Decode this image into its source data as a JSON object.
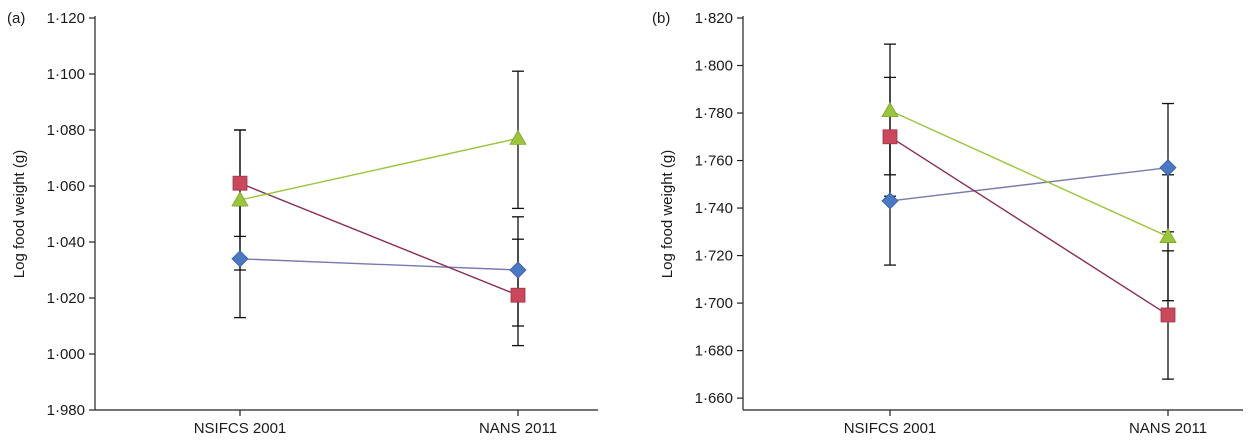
{
  "chart_data": [
    {
      "panel_label": "(a)",
      "type": "line",
      "ylabel": "Log food weight (g)",
      "categories": [
        "NSIFCS 2001",
        "NANS 2011"
      ],
      "ylim": [
        0.98,
        1.12
      ],
      "yticks": [
        0.98,
        1.0,
        1.02,
        1.04,
        1.06,
        1.08,
        1.1,
        1.12
      ],
      "ytick_labels": [
        "1·980",
        "1·000",
        "1·020",
        "1·040",
        "1·060",
        "1·080",
        "1·100",
        "1·120"
      ],
      "series": [
        {
          "marker": "diamond",
          "color": "#4a78c2",
          "line_color": "#7a7ab0",
          "values": [
            1.034,
            1.03
          ],
          "err_low": [
            1.013,
            1.003
          ],
          "err_high": [
            1.053,
            1.049
          ]
        },
        {
          "marker": "square",
          "color": "#c9485b",
          "line_color": "#8c2a57",
          "values": [
            1.061,
            1.021
          ],
          "err_low": [
            1.042,
            1.01
          ],
          "err_high": [
            1.08,
            1.041
          ]
        },
        {
          "marker": "triangle",
          "color": "#9bc53d",
          "line_color": "#9bc53d",
          "values": [
            1.055,
            1.077
          ],
          "err_low": [
            1.03,
            1.052
          ],
          "err_high": [
            1.08,
            1.101
          ]
        }
      ]
    },
    {
      "panel_label": "(b)",
      "type": "line",
      "ylabel": "Log food weight (g)",
      "categories": [
        "NSIFCS 2001",
        "NANS 2011"
      ],
      "ylim": [
        1.655,
        1.82
      ],
      "yticks": [
        1.66,
        1.68,
        1.7,
        1.72,
        1.74,
        1.76,
        1.78,
        1.8,
        1.82
      ],
      "ytick_labels": [
        "1·660",
        "1·680",
        "1·700",
        "1·720",
        "1·740",
        "1·760",
        "1·780",
        "1·800",
        "1·820"
      ],
      "series": [
        {
          "marker": "diamond",
          "color": "#4a78c2",
          "line_color": "#7a7ab0",
          "values": [
            1.743,
            1.757
          ],
          "err_low": [
            1.716,
            1.73
          ],
          "err_high": [
            1.77,
            1.784
          ]
        },
        {
          "marker": "square",
          "color": "#c9485b",
          "line_color": "#8c2a57",
          "values": [
            1.77,
            1.695
          ],
          "err_low": [
            1.745,
            1.668
          ],
          "err_high": [
            1.795,
            1.722
          ]
        },
        {
          "marker": "triangle",
          "color": "#9bc53d",
          "line_color": "#9bc53d",
          "values": [
            1.781,
            1.728
          ],
          "err_low": [
            1.754,
            1.701
          ],
          "err_high": [
            1.809,
            1.754
          ]
        }
      ]
    }
  ]
}
